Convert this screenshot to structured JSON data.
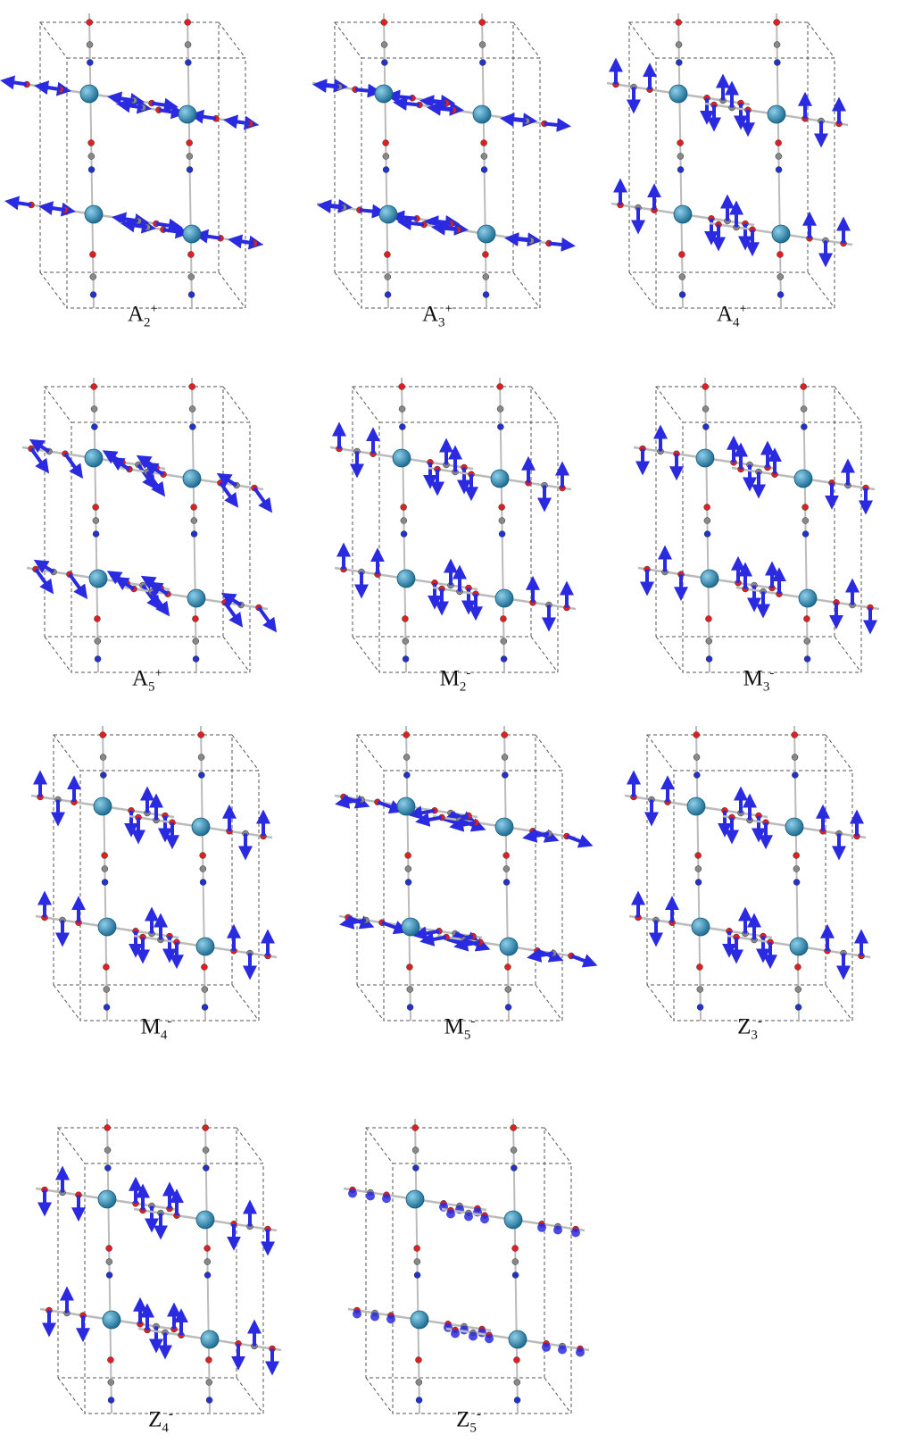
{
  "panels": [
    {
      "letter": "A",
      "sub": "2",
      "sup": "+"
    },
    {
      "letter": "A",
      "sub": "3",
      "sup": "+"
    },
    {
      "letter": "A",
      "sub": "4",
      "sup": "+"
    },
    {
      "letter": "A",
      "sub": "5",
      "sup": "+"
    },
    {
      "letter": "M",
      "sub": "2",
      "sup": "-"
    },
    {
      "letter": "M",
      "sub": "3",
      "sup": "-"
    },
    {
      "letter": "M",
      "sub": "4",
      "sup": "-"
    },
    {
      "letter": "M",
      "sub": "5",
      "sup": "-"
    },
    {
      "letter": "Z",
      "sub": "3",
      "sup": "-"
    },
    {
      "letter": "Z",
      "sub": "4",
      "sup": "-"
    },
    {
      "letter": "Z",
      "sub": "5",
      "sup": "-"
    }
  ]
}
